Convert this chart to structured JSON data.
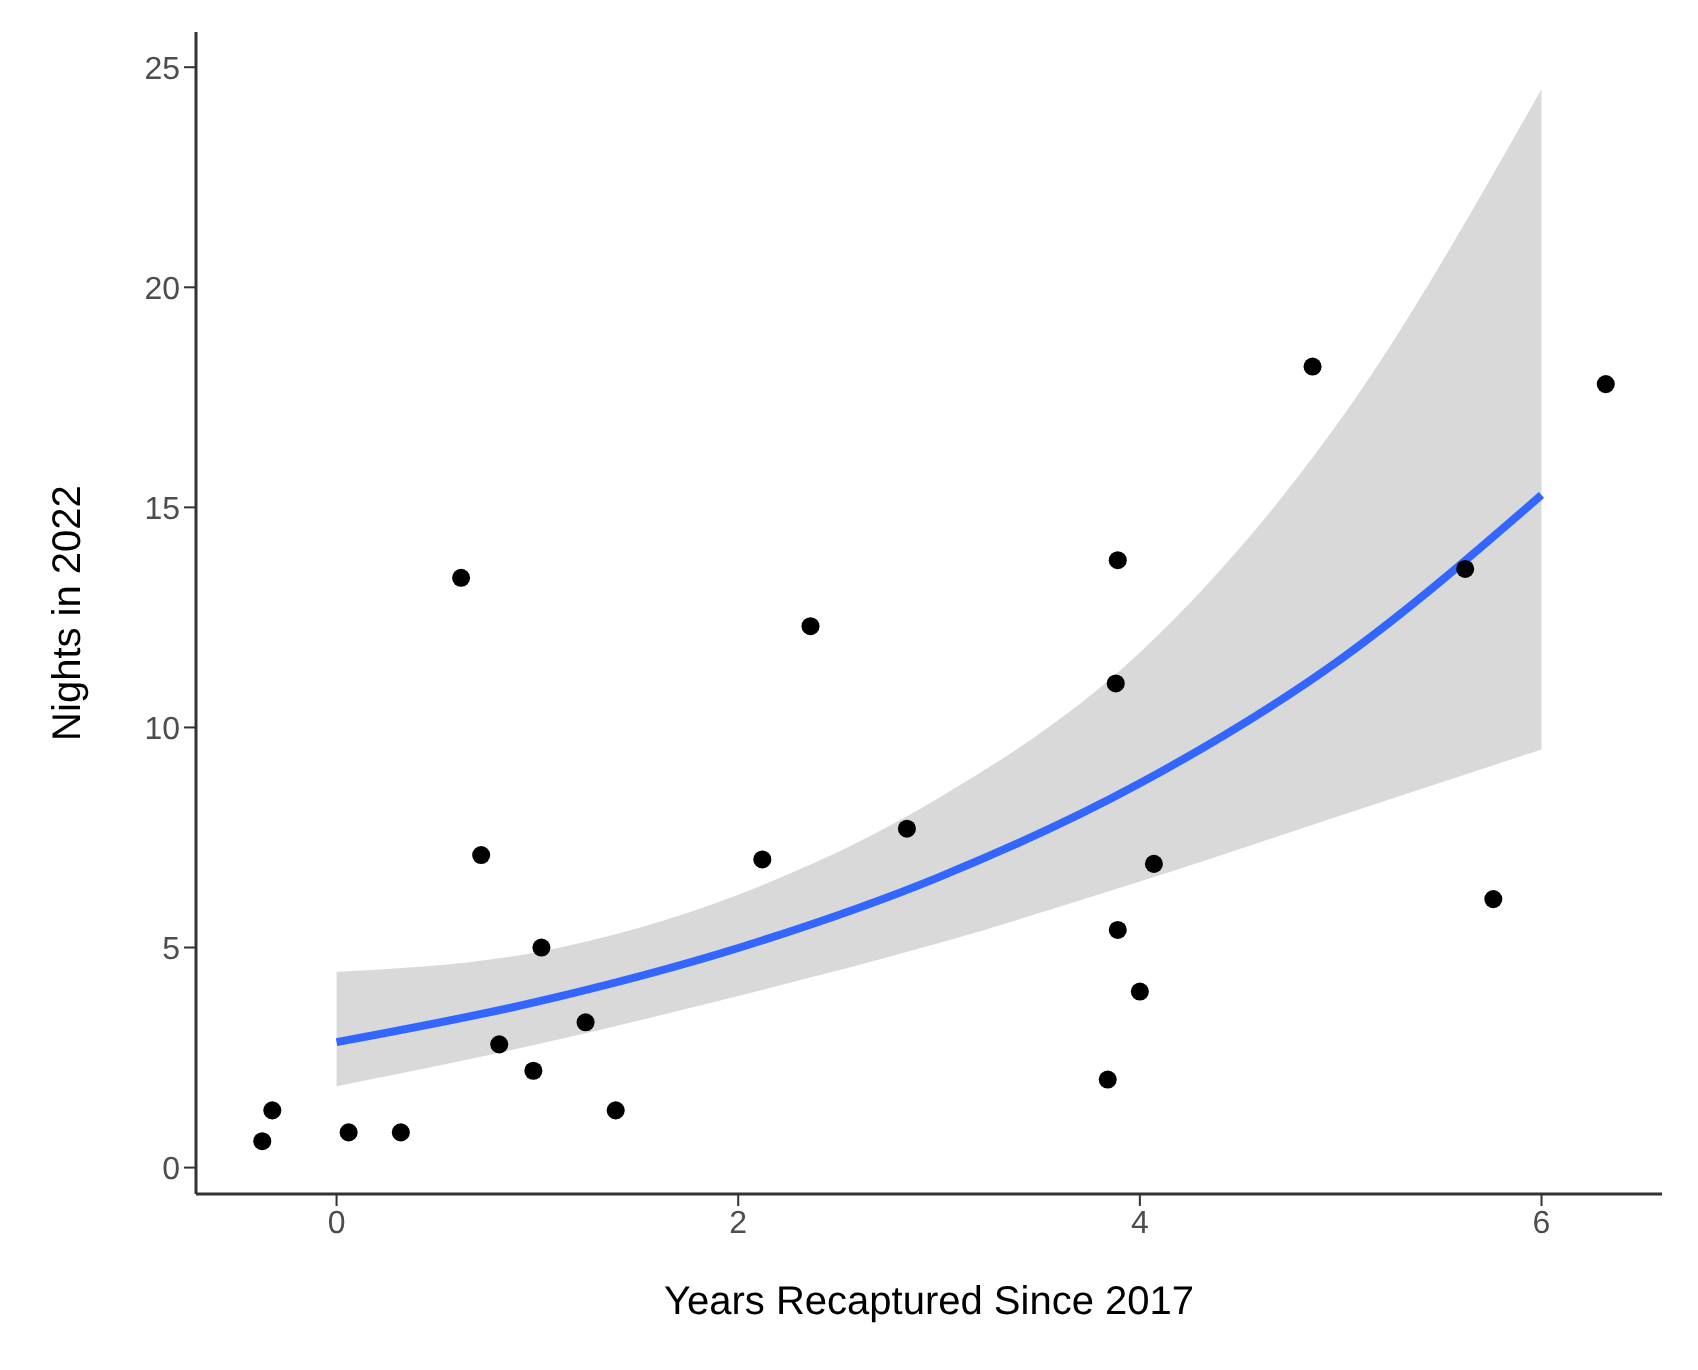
{
  "chart_data": {
    "type": "scatter",
    "xlabel": "Years Recaptured Since 2017",
    "ylabel": "Nights in 2022",
    "xlim": [
      -0.7,
      6.6
    ],
    "ylim": [
      -0.6,
      25.8
    ],
    "xticks": [
      0,
      2,
      4,
      6
    ],
    "yticks": [
      0,
      5,
      10,
      15,
      20,
      25
    ],
    "series": [
      {
        "color": "#000000",
        "marker": "circle",
        "x": [
          -0.37,
          -0.32,
          0.06,
          0.32,
          0.62,
          0.72,
          0.81,
          0.98,
          1.02,
          1.24,
          1.39,
          2.12,
          2.36,
          2.84,
          3.84,
          3.89,
          3.88,
          3.89,
          4.0,
          4.07,
          4.86,
          5.62,
          5.76,
          6.32
        ],
        "values": [
          0.6,
          1.3,
          0.8,
          0.8,
          13.4,
          7.1,
          2.8,
          2.2,
          5.0,
          3.3,
          1.3,
          7.0,
          12.3,
          7.7,
          2.0,
          13.8,
          11.0,
          5.4,
          4.0,
          6.9,
          18.2,
          13.6,
          6.1,
          17.8
        ]
      },
      {
        "type": "line",
        "color": "#3366ff",
        "x": [
          0,
          1,
          2,
          3,
          4,
          5,
          6
        ],
        "values": [
          2.85,
          3.77,
          4.99,
          6.6,
          8.73,
          11.55,
          15.28
        ],
        "lower": [
          1.85,
          2.8,
          3.9,
          5.1,
          6.5,
          8.0,
          9.5
        ],
        "upper": [
          4.45,
          4.9,
          6.2,
          8.4,
          11.7,
          17.0,
          24.5
        ]
      }
    ]
  }
}
